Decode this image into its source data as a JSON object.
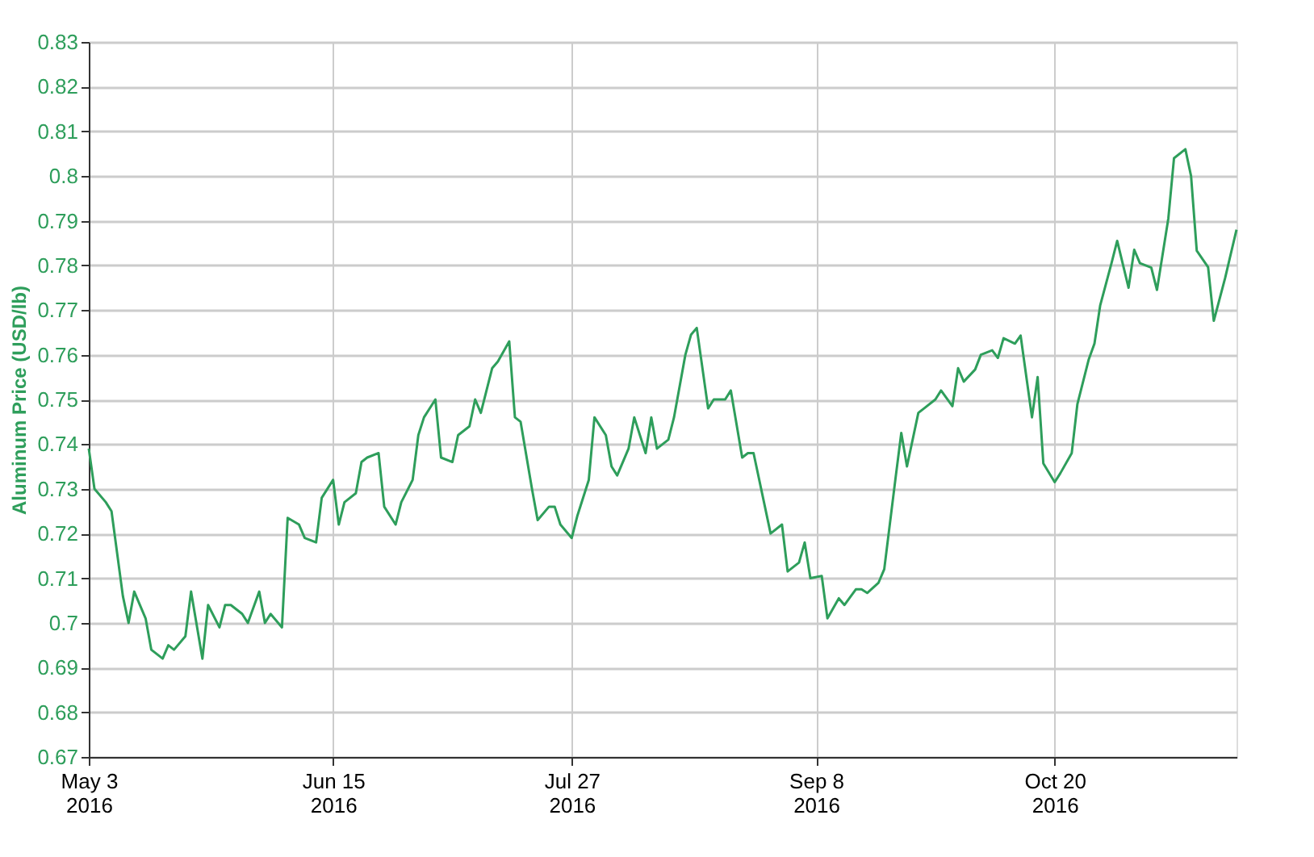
{
  "chart_data": {
    "type": "line",
    "ylabel": "Aluminum Price (USD/lb)",
    "xlim": [
      "2016-05-03",
      "2016-11-21"
    ],
    "ylim": [
      0.67,
      0.83
    ],
    "xticks": [
      {
        "value": "2016-05-03",
        "label": "May 3\n2016"
      },
      {
        "value": "2016-06-15",
        "label": "Jun 15\n2016"
      },
      {
        "value": "2016-07-27",
        "label": "Jul 27\n2016"
      },
      {
        "value": "2016-09-08",
        "label": "Sep 8\n2016"
      },
      {
        "value": "2016-10-20",
        "label": "Oct 20\n2016"
      }
    ],
    "yticks": [
      0.67,
      0.68,
      0.69,
      0.7,
      0.71,
      0.72,
      0.73,
      0.74,
      0.75,
      0.76,
      0.77,
      0.78,
      0.79,
      0.8,
      0.81,
      0.82,
      0.83
    ],
    "grid": true,
    "x": [
      "2016-05-03",
      "2016-05-04",
      "2016-05-06",
      "2016-05-07",
      "2016-05-09",
      "2016-05-10",
      "2016-05-11",
      "2016-05-13",
      "2016-05-14",
      "2016-05-16",
      "2016-05-17",
      "2016-05-18",
      "2016-05-20",
      "2016-05-21",
      "2016-05-23",
      "2016-05-24",
      "2016-05-26",
      "2016-05-27",
      "2016-05-28",
      "2016-05-30",
      "2016-05-31",
      "2016-06-02",
      "2016-06-03",
      "2016-06-04",
      "2016-06-06",
      "2016-06-07",
      "2016-06-09",
      "2016-06-10",
      "2016-06-12",
      "2016-06-13",
      "2016-06-15",
      "2016-06-16",
      "2016-06-17",
      "2016-06-19",
      "2016-06-20",
      "2016-06-21",
      "2016-06-23",
      "2016-06-24",
      "2016-06-26",
      "2016-06-27",
      "2016-06-29",
      "2016-06-30",
      "2016-07-01",
      "2016-07-03",
      "2016-07-04",
      "2016-07-06",
      "2016-07-07",
      "2016-07-09",
      "2016-07-10",
      "2016-07-11",
      "2016-07-13",
      "2016-07-14",
      "2016-07-16",
      "2016-07-17",
      "2016-07-18",
      "2016-07-20",
      "2016-07-21",
      "2016-07-23",
      "2016-07-24",
      "2016-07-25",
      "2016-07-27",
      "2016-07-28",
      "2016-07-30",
      "2016-07-31",
      "2016-08-02",
      "2016-08-03",
      "2016-08-04",
      "2016-08-06",
      "2016-08-07",
      "2016-08-09",
      "2016-08-10",
      "2016-08-11",
      "2016-08-13",
      "2016-08-14",
      "2016-08-16",
      "2016-08-17",
      "2016-08-18",
      "2016-08-20",
      "2016-08-21",
      "2016-08-23",
      "2016-08-24",
      "2016-08-26",
      "2016-08-27",
      "2016-08-28",
      "2016-08-30",
      "2016-08-31",
      "2016-09-02",
      "2016-09-03",
      "2016-09-05",
      "2016-09-06",
      "2016-09-07",
      "2016-09-09",
      "2016-09-10",
      "2016-09-12",
      "2016-09-13",
      "2016-09-15",
      "2016-09-16",
      "2016-09-17",
      "2016-09-19",
      "2016-09-20",
      "2016-09-22",
      "2016-09-23",
      "2016-09-24",
      "2016-09-26",
      "2016-09-27",
      "2016-09-29",
      "2016-09-30",
      "2016-10-02",
      "2016-10-03",
      "2016-10-04",
      "2016-10-06",
      "2016-10-07",
      "2016-10-09",
      "2016-10-10",
      "2016-10-11",
      "2016-10-13",
      "2016-10-14",
      "2016-10-16",
      "2016-10-17",
      "2016-10-18",
      "2016-10-20",
      "2016-10-21",
      "2016-10-23",
      "2016-10-24",
      "2016-10-26",
      "2016-10-27",
      "2016-10-28",
      "2016-10-30",
      "2016-10-31",
      "2016-11-02",
      "2016-11-03",
      "2016-11-04",
      "2016-11-06",
      "2016-11-07",
      "2016-11-09",
      "2016-11-10",
      "2016-11-12",
      "2016-11-13",
      "2016-11-14",
      "2016-11-16",
      "2016-11-17",
      "2016-11-19",
      "2016-11-21"
    ],
    "series": [
      {
        "color": "#2e9e5b",
        "values": [
          0.739,
          0.73,
          0.727,
          0.725,
          0.706,
          0.7,
          0.707,
          0.701,
          0.694,
          0.692,
          0.695,
          0.694,
          0.697,
          0.707,
          0.692,
          0.704,
          0.699,
          0.704,
          0.704,
          0.702,
          0.7,
          0.707,
          0.7,
          0.702,
          0.699,
          0.7235,
          0.722,
          0.719,
          0.718,
          0.728,
          0.732,
          0.722,
          0.727,
          0.729,
          0.736,
          0.737,
          0.738,
          0.726,
          0.722,
          0.727,
          0.732,
          0.742,
          0.746,
          0.75,
          0.737,
          0.736,
          0.742,
          0.744,
          0.75,
          0.747,
          0.757,
          0.7585,
          0.763,
          0.746,
          0.745,
          0.73,
          0.723,
          0.726,
          0.726,
          0.722,
          0.719,
          0.724,
          0.732,
          0.746,
          0.742,
          0.735,
          0.733,
          0.739,
          0.746,
          0.738,
          0.746,
          0.739,
          0.741,
          0.746,
          0.76,
          0.7645,
          0.766,
          0.748,
          0.75,
          0.75,
          0.752,
          0.737,
          0.738,
          0.738,
          0.726,
          0.72,
          0.722,
          0.7115,
          0.7135,
          0.718,
          0.71,
          0.7105,
          0.701,
          0.7055,
          0.704,
          0.7075,
          0.7075,
          0.7067,
          0.709,
          0.712,
          0.7325,
          0.7425,
          0.735,
          0.747,
          0.748,
          0.75,
          0.752,
          0.7485,
          0.757,
          0.754,
          0.7567,
          0.76,
          0.761,
          0.7593,
          0.7637,
          0.7625,
          0.7643,
          0.746,
          0.755,
          0.7357,
          0.7315,
          0.7335,
          0.738,
          0.749,
          0.759,
          0.7625,
          0.771,
          0.7805,
          0.7855,
          0.775,
          0.7835,
          0.7805,
          0.7795,
          0.7745,
          0.7905,
          0.804,
          0.806,
          0.8,
          0.7833,
          0.7796,
          0.7676,
          0.7772,
          0.788
        ]
      }
    ]
  }
}
